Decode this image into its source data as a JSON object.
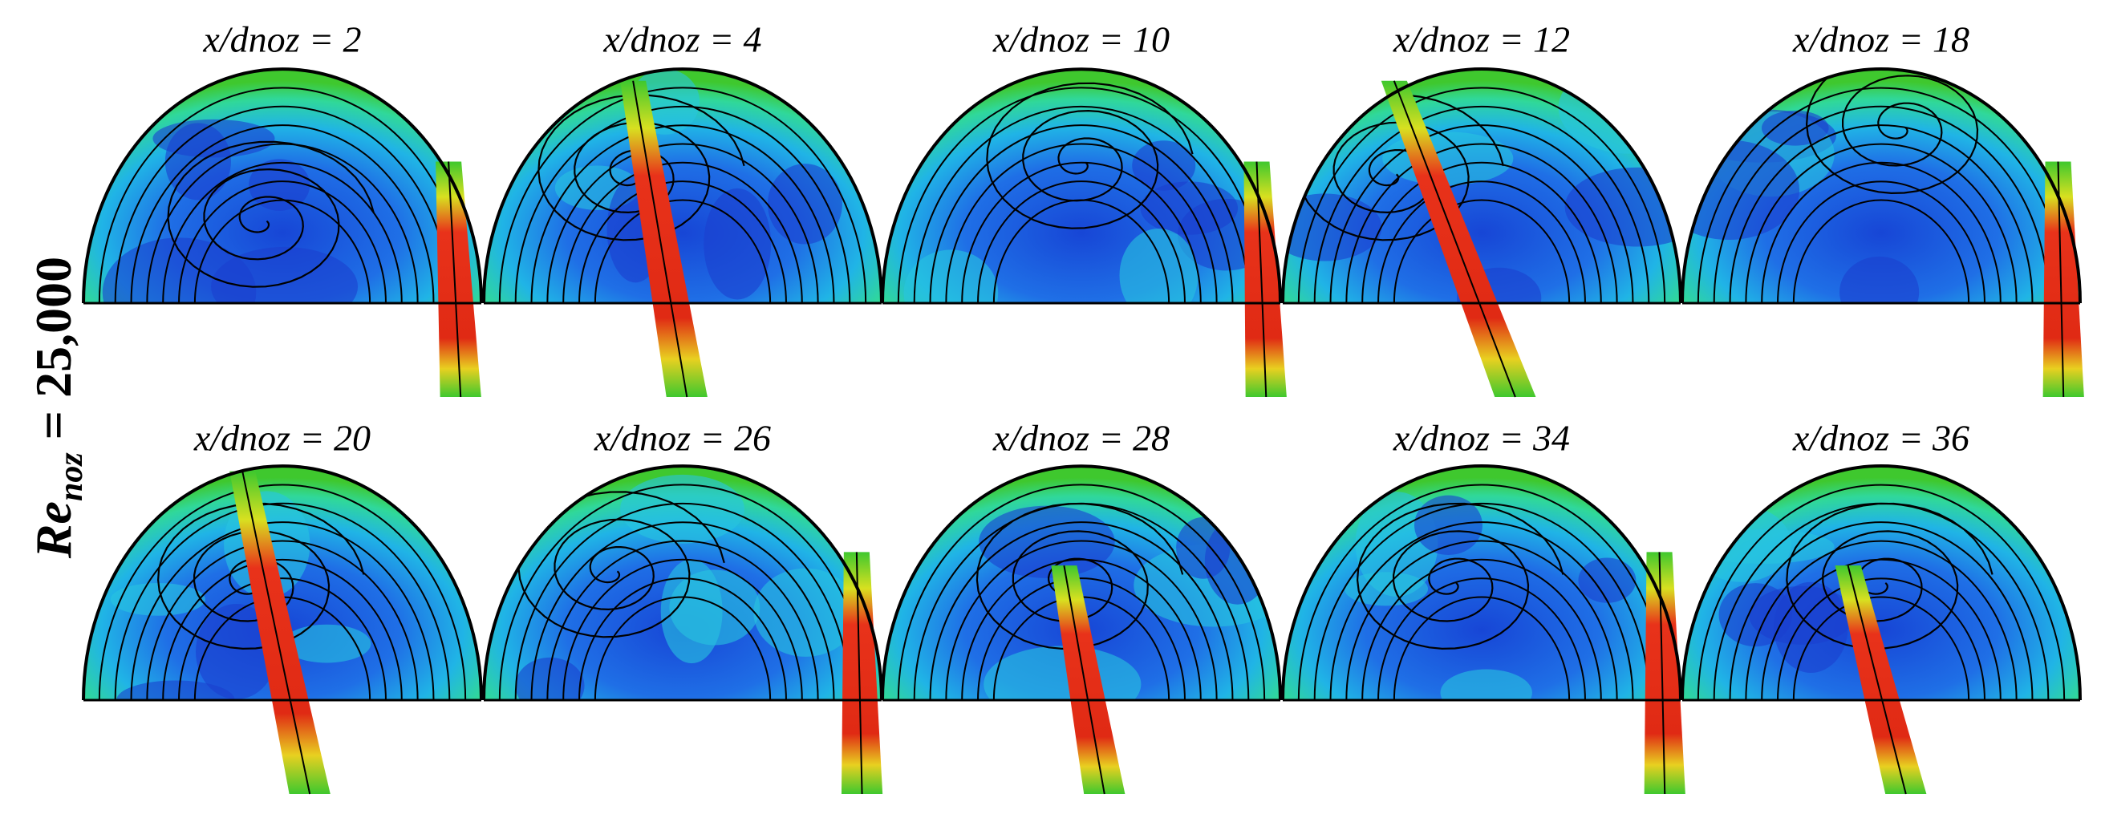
{
  "side_label": {
    "main": "Re",
    "subscript": "noz",
    "rest": " = 25,000"
  },
  "panels": [
    {
      "title": "x/dnoz = 2"
    },
    {
      "title": "x/dnoz = 4"
    },
    {
      "title": "x/dnoz = 10"
    },
    {
      "title": "x/dnoz = 12"
    },
    {
      "title": "x/dnoz = 18"
    },
    {
      "title": "x/dnoz = 20"
    },
    {
      "title": "x/dnoz = 26"
    },
    {
      "title": "x/dnoz = 28"
    },
    {
      "title": "x/dnoz = 34"
    },
    {
      "title": "x/dnoz = 36"
    }
  ]
}
